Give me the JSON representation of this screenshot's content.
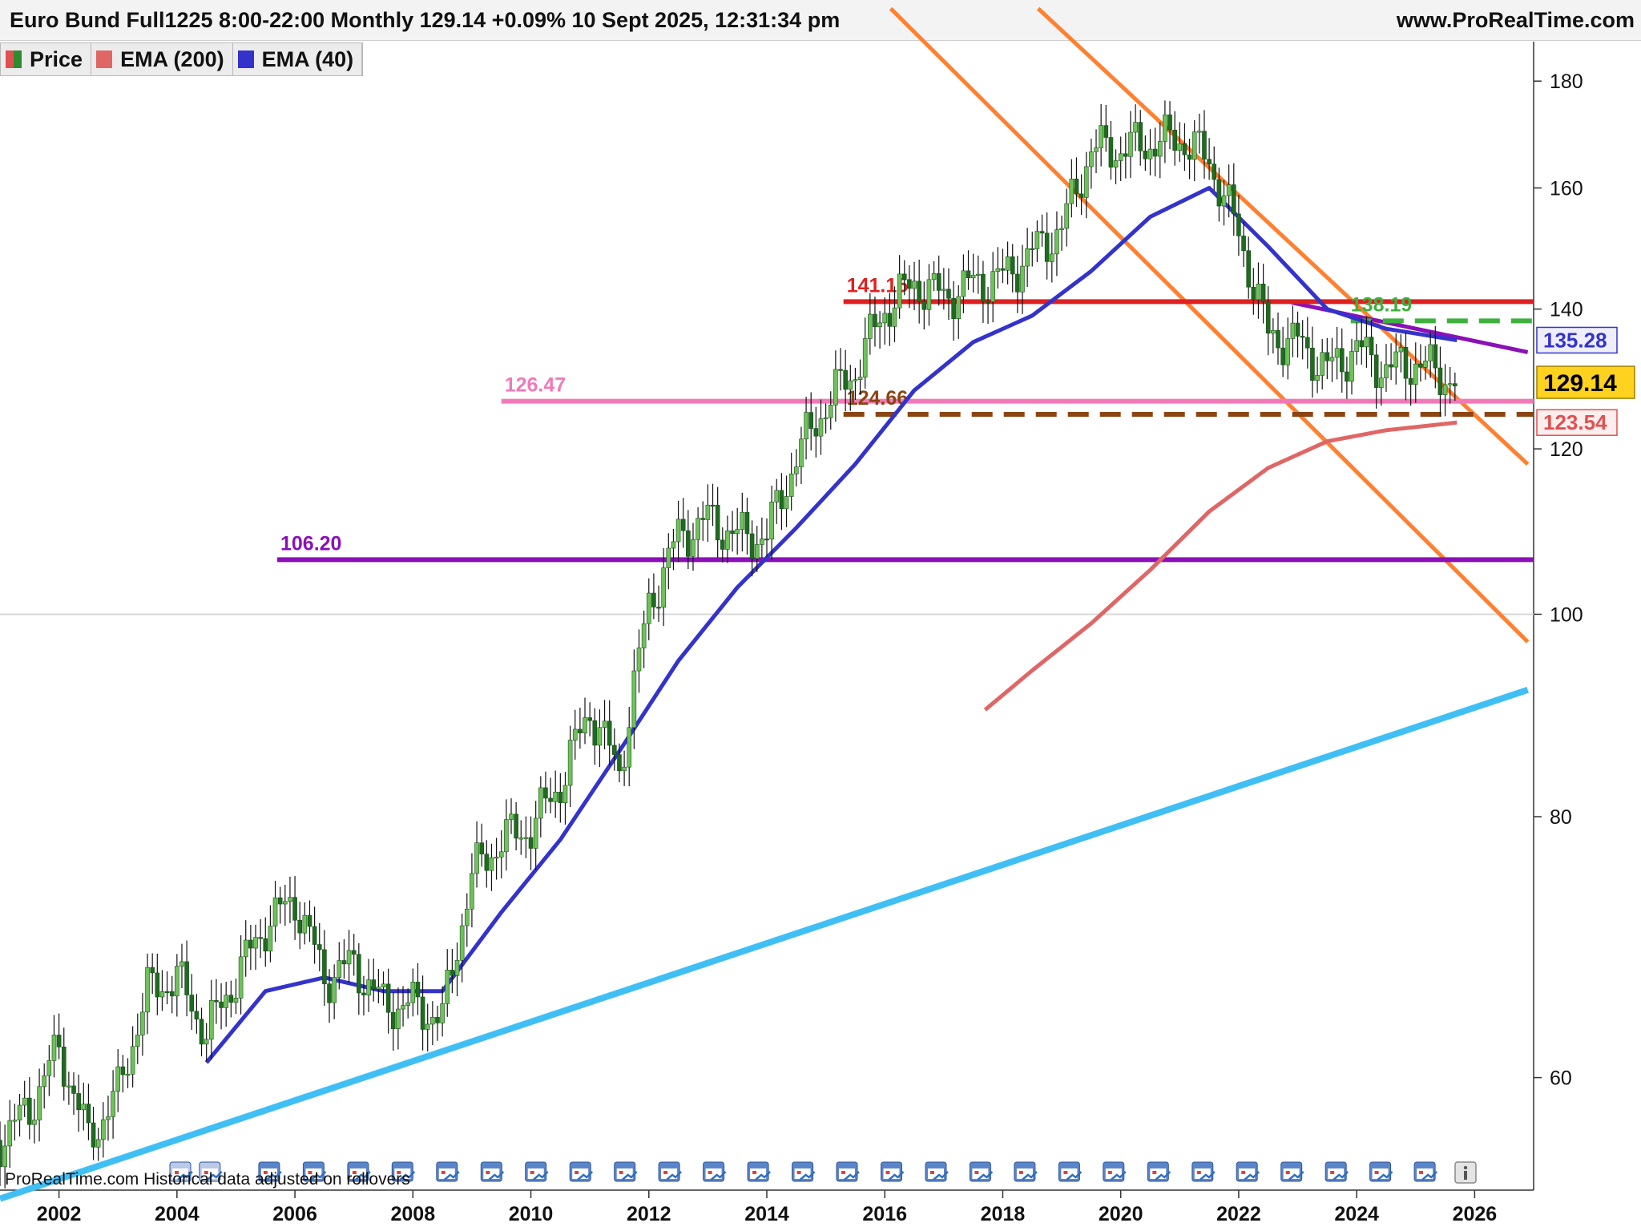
{
  "header": {
    "title": "Euro Bund Full1225 8:00-22:00 Monthly 129.14 +0.09% 10 Sept 2025, 12:31:34 pm",
    "site": "www.ProRealTime.com"
  },
  "legend": [
    {
      "label": "Price",
      "color": "#2e8b2e",
      "color2": "#e05050"
    },
    {
      "label": "EMA (200)",
      "color": "#e06666"
    },
    {
      "label": "EMA (40)",
      "color": "#3333cc"
    }
  ],
  "footer": {
    "text": "ProRealTime.com  Historical data adjusted on rollovers"
  },
  "icons": [
    "calendar-event-icon",
    "info-icon"
  ],
  "chart_data": {
    "type": "line",
    "instrument": "Euro Bund Full1225",
    "timeframe": "Monthly",
    "last_price": 129.14,
    "change_pct": "+0.09%",
    "x_ticks": [
      "2002",
      "2004",
      "2006",
      "2008",
      "2010",
      "2012",
      "2014",
      "2016",
      "2018",
      "2020",
      "2022",
      "2024",
      "2026"
    ],
    "y_ticks": [
      60,
      80,
      100,
      120,
      140,
      160,
      180
    ],
    "y_scale": "log",
    "ylim": [
      53,
      188
    ],
    "xlim": [
      2001.0,
      2027.0
    ],
    "grid": false,
    "series": [
      {
        "name": "Price",
        "style": "candles",
        "color": "#2e8b2e",
        "x": [
          2001.0,
          2001.5,
          2002.0,
          2002.5,
          2003.0,
          2003.5,
          2004.0,
          2004.5,
          2005.0,
          2005.5,
          2006.0,
          2006.5,
          2007.0,
          2007.5,
          2008.0,
          2008.5,
          2009.0,
          2009.5,
          2010.0,
          2010.5,
          2011.0,
          2011.5,
          2012.0,
          2012.5,
          2013.0,
          2013.5,
          2014.0,
          2014.5,
          2015.0,
          2015.5,
          2016.0,
          2016.5,
          2017.0,
          2017.5,
          2018.0,
          2018.5,
          2019.0,
          2019.5,
          2020.0,
          2020.5,
          2021.0,
          2021.5,
          2022.0,
          2022.5,
          2023.0,
          2023.5,
          2024.0,
          2024.5,
          2025.0,
          2025.5,
          2025.7
        ],
        "y": [
          56,
          58,
          62,
          56,
          59,
          66,
          67,
          63,
          67,
          71,
          73,
          67,
          68,
          65,
          65,
          64,
          75,
          78,
          79,
          83,
          90,
          84,
          101,
          109,
          111,
          109,
          109,
          119,
          126,
          131,
          140,
          144,
          142,
          144,
          145,
          149,
          153,
          167,
          167,
          168,
          169,
          165,
          152,
          136,
          135,
          131,
          134,
          131,
          132,
          130,
          129.14
        ]
      },
      {
        "name": "EMA (200)",
        "style": "line",
        "color": "#e06666",
        "x": [
          2017.7,
          2018.5,
          2019.5,
          2020.5,
          2021.5,
          2022.5,
          2023.5,
          2024.5,
          2025.7
        ],
        "y": [
          90,
          94,
          99,
          105,
          112,
          117.5,
          121.0,
          122.5,
          123.54
        ]
      },
      {
        "name": "EMA (40)",
        "style": "line",
        "color": "#3333cc",
        "x": [
          2004.5,
          2005.5,
          2006.5,
          2007.5,
          2008.5,
          2009.5,
          2010.5,
          2011.5,
          2012.5,
          2013.5,
          2014.5,
          2015.5,
          2016.5,
          2017.5,
          2018.5,
          2019.5,
          2020.5,
          2021.5,
          2022.5,
          2023.5,
          2024.5,
          2025.7
        ],
        "y": [
          61,
          66,
          67,
          66,
          66,
          72,
          78,
          86,
          95,
          103,
          110,
          118,
          128,
          135,
          139,
          146,
          155,
          160,
          150,
          140,
          137,
          135.28
        ]
      }
    ],
    "levels": [
      {
        "label": "141.15",
        "value": 141.15,
        "color": "#e02020",
        "from": 2015.3,
        "dashed": false
      },
      {
        "label": "126.47",
        "value": 126.47,
        "color": "#f07ab8",
        "from": 2009.5,
        "dashed": false
      },
      {
        "label": "124.66",
        "value": 124.66,
        "color": "#8b4513",
        "from": 2015.3,
        "dashed": true
      },
      {
        "label": "106.20",
        "value": 106.2,
        "color": "#8a10b8",
        "from": 2005.7,
        "dashed": false
      },
      {
        "label": "138.19",
        "value": 138.19,
        "color": "#3db03d",
        "from": 2023.9,
        "dashed": true
      }
    ],
    "trendlines": [
      {
        "color": "#ff8030",
        "x": [
          2016.1,
          2026.9
        ],
        "y": [
          195,
          97
        ]
      },
      {
        "color": "#ff8030",
        "x": [
          2018.6,
          2026.9
        ],
        "y": [
          195,
          118
        ]
      },
      {
        "color": "#8a10b8",
        "x": [
          2022.9,
          2026.9
        ],
        "y": [
          141,
          133.5
        ]
      },
      {
        "color": "#40bff5",
        "x": [
          2001.0,
          2026.9
        ],
        "y": [
          52.5,
          92
        ]
      }
    ],
    "price_labels": [
      {
        "label": "135.28",
        "value": 135.28,
        "color": "#3333cc",
        "bg": "#eeeeff"
      },
      {
        "label": "129.14",
        "value": 129.14,
        "color": "#000000",
        "bg": "#ffd21f"
      },
      {
        "label": "123.54",
        "value": 123.54,
        "color": "#e05050",
        "bg": "#fdeeee"
      }
    ]
  }
}
